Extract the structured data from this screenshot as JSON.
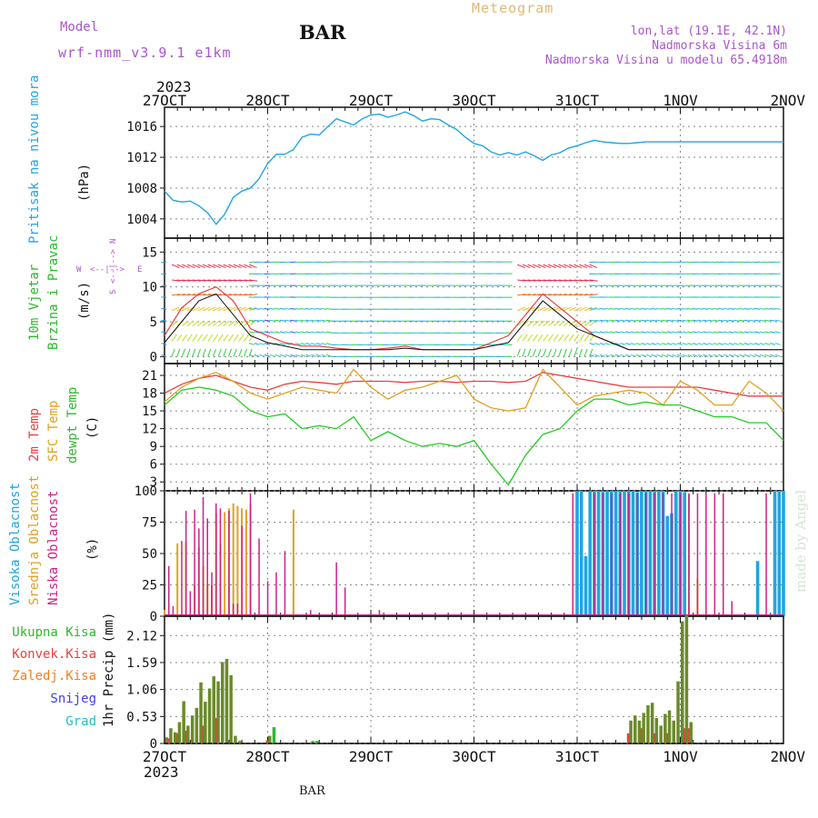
{
  "header": {
    "model_label": "Model",
    "model_name": "wrf-nmm_v3.9.1 e1km",
    "station": "BAR",
    "title": "Meteogram",
    "coords": "lon,lat (19.1E, 42.1N)",
    "altitude": "Nadmorska Visina 6m",
    "model_altitude": "Nadmorska Visina u modelu 65.4918m",
    "year_top": "2023",
    "year_bottom": "2023",
    "footer_station": "BAR",
    "credit": "made by Angel"
  },
  "colors": {
    "pressure": "#1fa6e0",
    "t2m": "#e84040",
    "sfc": "#e0a020",
    "dewpt": "#22cc22",
    "high_cloud": "#1fa6e0",
    "mid_cloud": "#e0a020",
    "low_cloud": "#cc2288",
    "total_precip": "#2db82d",
    "conv_precip": "#e84040",
    "frozen_precip": "#f08020",
    "snow": "#4040e0",
    "hail": "#20c0c0",
    "header_purple": "#aa55cc",
    "header_gold": "#e0b870"
  },
  "time_axis": {
    "ticks": [
      "27OCT",
      "28OCT",
      "29OCT",
      "30OCT",
      "31OCT",
      "1NOV",
      "2NOV"
    ],
    "xlim_hours": [
      0,
      144
    ]
  },
  "chart_data": [
    {
      "type": "line",
      "panel": "pressure",
      "ylabel_name": "Pritisak na nivou mora",
      "ylabel_unit": "(hPa)",
      "yticks": [
        "1004",
        "1008",
        "1012",
        "1016"
      ],
      "ylim": [
        1001.5,
        1018.5
      ],
      "grid": true,
      "x_hours": [
        0,
        2,
        4,
        6,
        8,
        10,
        12,
        14,
        16,
        18,
        20,
        22,
        24,
        26,
        28,
        30,
        32,
        34,
        36,
        38,
        40,
        42,
        44,
        46,
        48,
        50,
        52,
        54,
        56,
        58,
        60,
        62,
        64,
        66,
        68,
        70,
        72,
        74,
        76,
        78,
        80,
        82,
        84,
        86,
        88,
        90,
        92,
        94,
        96,
        98,
        100,
        102,
        104,
        106,
        108,
        110,
        112,
        114,
        116,
        118,
        120,
        122,
        124,
        126,
        128,
        130,
        132,
        134,
        136,
        138,
        140,
        142,
        144
      ],
      "values": [
        1007.6,
        1006.4,
        1006.2,
        1006.3,
        1005.7,
        1004.8,
        1003.3,
        1004.6,
        1006.8,
        1007.6,
        1008.0,
        1009.2,
        1011.2,
        1012.4,
        1012.4,
        1013.0,
        1014.6,
        1015.0,
        1014.9,
        1016.0,
        1017.0,
        1016.6,
        1016.2,
        1017.0,
        1017.5,
        1017.6,
        1017.2,
        1017.5,
        1017.9,
        1017.4,
        1016.7,
        1017.0,
        1016.9,
        1016.2,
        1015.6,
        1014.6,
        1013.8,
        1013.5,
        1012.7,
        1012.3,
        1012.6,
        1012.3,
        1012.7,
        1012.2,
        1011.6,
        1012.3,
        1012.6,
        1013.2,
        1013.5,
        1013.9,
        1014.2,
        1014.0,
        1013.9,
        1013.8,
        1013.8,
        1013.9,
        1014.0,
        1014.0,
        1014.0,
        1014.0,
        1014.0,
        1014.0,
        1014.0,
        1014.0,
        1014.0,
        1014.0,
        1014.0,
        1014.0,
        1014.0,
        1014.0,
        1014.0,
        1014.0,
        1014.0
      ]
    },
    {
      "type": "line",
      "panel": "wind",
      "ylabel_name1": "10m Vjetar",
      "ylabel_name2": "Brzina i Pravac",
      "ylabel_unit": "(m/s)",
      "compass": {
        "n": "N",
        "s": "S",
        "e": "E",
        "w": "W"
      },
      "yticks": [
        "0",
        "5",
        "10",
        "15"
      ],
      "ylim": [
        -1,
        17
      ],
      "grid": true,
      "x_hours": [
        0,
        4,
        8,
        12,
        16,
        20,
        24,
        28,
        32,
        36,
        40,
        44,
        48,
        52,
        56,
        60,
        64,
        68,
        72,
        76,
        80,
        84,
        88,
        92,
        96,
        100,
        104,
        108,
        112,
        116,
        120,
        124,
        128,
        132,
        136,
        140,
        144
      ],
      "speed": [
        2,
        5,
        8,
        9,
        6,
        3,
        2,
        1.5,
        1,
        1,
        1,
        1,
        1,
        1,
        1.2,
        1,
        1,
        1,
        1,
        1.5,
        2,
        5,
        8,
        6,
        4,
        3,
        2,
        1,
        1,
        1,
        1,
        1,
        1,
        1,
        1,
        1,
        1
      ],
      "gust": [
        3,
        7,
        9,
        10,
        8,
        4,
        3,
        2,
        1.5,
        1.5,
        1.2,
        1,
        1,
        1.2,
        1.5,
        1,
        1,
        1,
        1,
        2,
        3,
        6,
        9,
        7,
        5,
        3,
        2,
        1,
        1,
        1,
        1,
        1,
        1,
        1,
        1,
        1,
        1
      ]
    },
    {
      "type": "line",
      "panel": "temperature",
      "ylabel_name1": "2m Temp",
      "ylabel_name2": "SFC Temp",
      "ylabel_name3": "dewpt Temp",
      "ylabel_unit": "(C)",
      "yticks": [
        "3",
        "6",
        "9",
        "12",
        "15",
        "18",
        "21"
      ],
      "ylim": [
        1.5,
        23
      ],
      "grid": true,
      "series": [
        {
          "key": "t2m",
          "x_hours": [
            0,
            4,
            8,
            12,
            16,
            20,
            24,
            28,
            32,
            36,
            40,
            44,
            48,
            52,
            56,
            60,
            64,
            68,
            72,
            76,
            80,
            84,
            88,
            92,
            96,
            100,
            104,
            108,
            112,
            116,
            120,
            124,
            128,
            132,
            136,
            140,
            144
          ],
          "values": [
            18,
            19.5,
            20.5,
            21,
            20,
            19,
            18.5,
            19.5,
            20,
            19.8,
            19.5,
            20,
            20,
            20,
            19.8,
            20,
            20,
            19.8,
            20,
            20,
            19.8,
            20,
            21.5,
            21,
            20.5,
            20,
            19.5,
            19,
            19,
            19,
            19,
            19,
            18.5,
            18,
            17.5,
            17.5,
            17.5
          ]
        },
        {
          "key": "sfc",
          "x_hours": [
            0,
            4,
            8,
            12,
            16,
            20,
            24,
            28,
            32,
            36,
            40,
            44,
            48,
            52,
            56,
            60,
            64,
            68,
            72,
            76,
            80,
            84,
            88,
            92,
            96,
            100,
            104,
            108,
            112,
            116,
            120,
            124,
            128,
            132,
            136,
            140,
            144
          ],
          "values": [
            16.5,
            19,
            20.5,
            21.5,
            20,
            18,
            17,
            18,
            19,
            18.5,
            18,
            22,
            19,
            17,
            18.5,
            19,
            20,
            21,
            17,
            15.5,
            15,
            15.5,
            22,
            19,
            16,
            17.5,
            18,
            18.5,
            18,
            16,
            20,
            18.5,
            16,
            16,
            20,
            18,
            15
          ]
        },
        {
          "key": "dewpt",
          "x_hours": [
            0,
            4,
            8,
            12,
            16,
            20,
            24,
            28,
            32,
            36,
            40,
            44,
            48,
            52,
            56,
            60,
            64,
            68,
            72,
            76,
            80,
            84,
            88,
            92,
            96,
            100,
            104,
            108,
            112,
            116,
            120,
            124,
            128,
            132,
            136,
            140,
            144
          ],
          "values": [
            16,
            18.5,
            19,
            18.5,
            17.5,
            15,
            14,
            14.5,
            12,
            12.5,
            12,
            14,
            10,
            11.5,
            10,
            9,
            9.5,
            9,
            10,
            6,
            2.5,
            7.5,
            11,
            12,
            15,
            17,
            17,
            16,
            16.5,
            16,
            16,
            15,
            14,
            14,
            13,
            13,
            10
          ]
        }
      ]
    },
    {
      "type": "bar",
      "panel": "clouds",
      "ylabel_name1": "Visoka Oblacnost",
      "ylabel_name2": "Srednja Oblacnost",
      "ylabel_name3": "Niska Oblacnost",
      "ylabel_unit": "(%)",
      "yticks": [
        "0",
        "25",
        "50",
        "75",
        "100"
      ],
      "ylim": [
        0,
        100
      ],
      "grid": true,
      "series": [
        {
          "key": "low",
          "x_hours": [
            1,
            2,
            4,
            5,
            6,
            7,
            8,
            9,
            10,
            11,
            12,
            13,
            15,
            16,
            17,
            18,
            20,
            22,
            24,
            26,
            28,
            34,
            40,
            42,
            50,
            95,
            100,
            102,
            104,
            106,
            108,
            110,
            112,
            114,
            116,
            118,
            120,
            122,
            124,
            126,
            128,
            130,
            132,
            140
          ],
          "values": [
            40,
            8,
            60,
            84,
            20,
            85,
            70,
            95,
            78,
            35,
            90,
            86,
            84,
            10,
            10,
            72,
            98,
            62,
            28,
            35,
            52,
            5,
            43,
            23,
            5,
            98,
            98,
            98,
            98,
            98,
            98,
            98,
            98,
            98,
            98,
            98,
            98,
            98,
            98,
            98,
            98,
            98,
            12,
            98
          ]
        },
        {
          "key": "mid",
          "x_hours": [
            0,
            3,
            5,
            7,
            8,
            9,
            10,
            11,
            12,
            13,
            14,
            15,
            16,
            17,
            18,
            19,
            20,
            30,
            100,
            104,
            106,
            108,
            110,
            112,
            114,
            116,
            118,
            120,
            122,
            124
          ],
          "values": [
            5,
            58,
            60,
            25,
            55,
            40,
            26,
            25,
            82,
            58,
            83,
            86,
            90,
            88,
            86,
            85,
            90,
            85,
            5,
            99,
            93,
            86,
            80,
            77,
            85,
            65,
            40,
            75,
            97,
            30
          ]
        },
        {
          "key": "high",
          "x_hours": [
            96,
            97,
            98,
            99,
            100,
            101,
            102,
            103,
            104,
            105,
            106,
            107,
            108,
            109,
            110,
            111,
            112,
            113,
            114,
            115,
            116,
            117,
            118,
            119,
            120,
            121,
            138,
            142,
            143,
            144
          ],
          "values": [
            100,
            100,
            48,
            100,
            100,
            100,
            100,
            100,
            100,
            100,
            100,
            100,
            100,
            100,
            99,
            100,
            100,
            100,
            100,
            100,
            100,
            80,
            82,
            100,
            100,
            99,
            44,
            100,
            100,
            100
          ]
        }
      ]
    },
    {
      "type": "bar",
      "panel": "precip",
      "legend": [
        "Ukupna Kisa",
        "Konvek.Kisa",
        "Zaledj.Kisa",
        "Snijeg",
        "Grad"
      ],
      "ylabel": "1hr Precip (mm)",
      "yticks": [
        "0",
        "0.53",
        "1.06",
        "1.59",
        "2.12"
      ],
      "ylim": [
        0,
        2.5
      ],
      "grid": true,
      "series": [
        {
          "key": "total",
          "x_hours": [
            0,
            1,
            2,
            3,
            4,
            5,
            6,
            7,
            8,
            9,
            10,
            11,
            12,
            13,
            14,
            15,
            16,
            17,
            24,
            25,
            34,
            35,
            108,
            109,
            110,
            111,
            112,
            113,
            114,
            115,
            116,
            117,
            118,
            119,
            120,
            121,
            122
          ],
          "values": [
            0.12,
            0.3,
            0.22,
            0.42,
            0.83,
            0.35,
            0.55,
            0.7,
            1.2,
            0.82,
            1.08,
            1.32,
            1.22,
            1.6,
            1.66,
            1.34,
            0.15,
            0.05,
            0.15,
            0.32,
            0.05,
            0.05,
            0.45,
            0.55,
            0.45,
            0.6,
            0.75,
            0.8,
            0.5,
            0.35,
            0.58,
            0.65,
            0.45,
            1.22,
            2.4,
            2.52,
            0.42
          ]
        },
        {
          "key": "conv",
          "x_hours": [
            1,
            3,
            5,
            9,
            12,
            24,
            108,
            111,
            114,
            117,
            121,
            122
          ],
          "values": [
            0.1,
            0.2,
            0.25,
            0.35,
            0.5,
            0.06,
            0.2,
            0.3,
            0.2,
            0.2,
            0.3,
            0.3
          ]
        }
      ]
    }
  ]
}
